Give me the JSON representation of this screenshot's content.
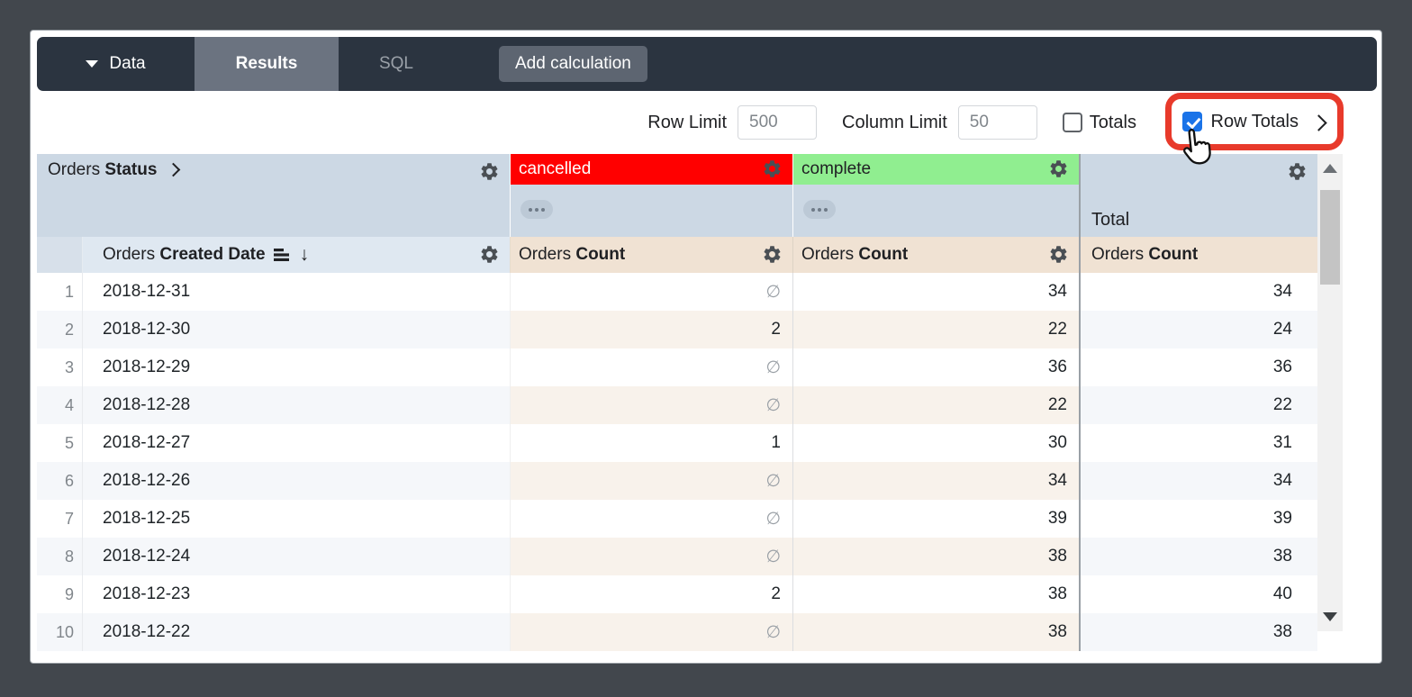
{
  "toolbar": {
    "data_label": "Data",
    "results_label": "Results",
    "sql_label": "SQL",
    "add_calculation_label": "Add calculation"
  },
  "controls": {
    "row_limit_label": "Row Limit",
    "row_limit_value": "500",
    "column_limit_label": "Column Limit",
    "column_limit_value": "50",
    "totals_label": "Totals",
    "totals_checked": false,
    "row_totals_label": "Row Totals",
    "row_totals_checked": true
  },
  "table": {
    "pivot_header": {
      "prefix": "Orders",
      "field": "Status"
    },
    "pivot_columns": [
      {
        "label": "cancelled",
        "bg": "#ff0000",
        "text": "#ffffff"
      },
      {
        "label": "complete",
        "bg": "#90ee90",
        "text": "#202124"
      }
    ],
    "total_label": "Total",
    "dimension_header": {
      "prefix": "Orders",
      "field": "Created Date"
    },
    "measure_header": {
      "prefix": "Orders",
      "field": "Count"
    },
    "null_symbol": "∅",
    "rows": [
      {
        "n": "1",
        "date": "2018-12-31",
        "cancelled": "∅",
        "complete": "34",
        "total": "34"
      },
      {
        "n": "2",
        "date": "2018-12-30",
        "cancelled": "2",
        "complete": "22",
        "total": "24"
      },
      {
        "n": "3",
        "date": "2018-12-29",
        "cancelled": "∅",
        "complete": "36",
        "total": "36"
      },
      {
        "n": "4",
        "date": "2018-12-28",
        "cancelled": "∅",
        "complete": "22",
        "total": "22"
      },
      {
        "n": "5",
        "date": "2018-12-27",
        "cancelled": "1",
        "complete": "30",
        "total": "31"
      },
      {
        "n": "6",
        "date": "2018-12-26",
        "cancelled": "∅",
        "complete": "34",
        "total": "34"
      },
      {
        "n": "7",
        "date": "2018-12-25",
        "cancelled": "∅",
        "complete": "39",
        "total": "39"
      },
      {
        "n": "8",
        "date": "2018-12-24",
        "cancelled": "∅",
        "complete": "38",
        "total": "38"
      },
      {
        "n": "9",
        "date": "2018-12-23",
        "cancelled": "2",
        "complete": "38",
        "total": "40"
      },
      {
        "n": "10",
        "date": "2018-12-22",
        "cancelled": "∅",
        "complete": "38",
        "total": "38"
      }
    ]
  },
  "colors": {
    "accent_blue": "#1a73e8",
    "highlight_red": "#e83a2b",
    "cancelled_bg": "#ff0000",
    "complete_bg": "#90ee90",
    "pivot_header_bg": "#ccd8e4",
    "measure_header_bg": "#f0e2d3",
    "topbar_bg": "#2b3440"
  }
}
